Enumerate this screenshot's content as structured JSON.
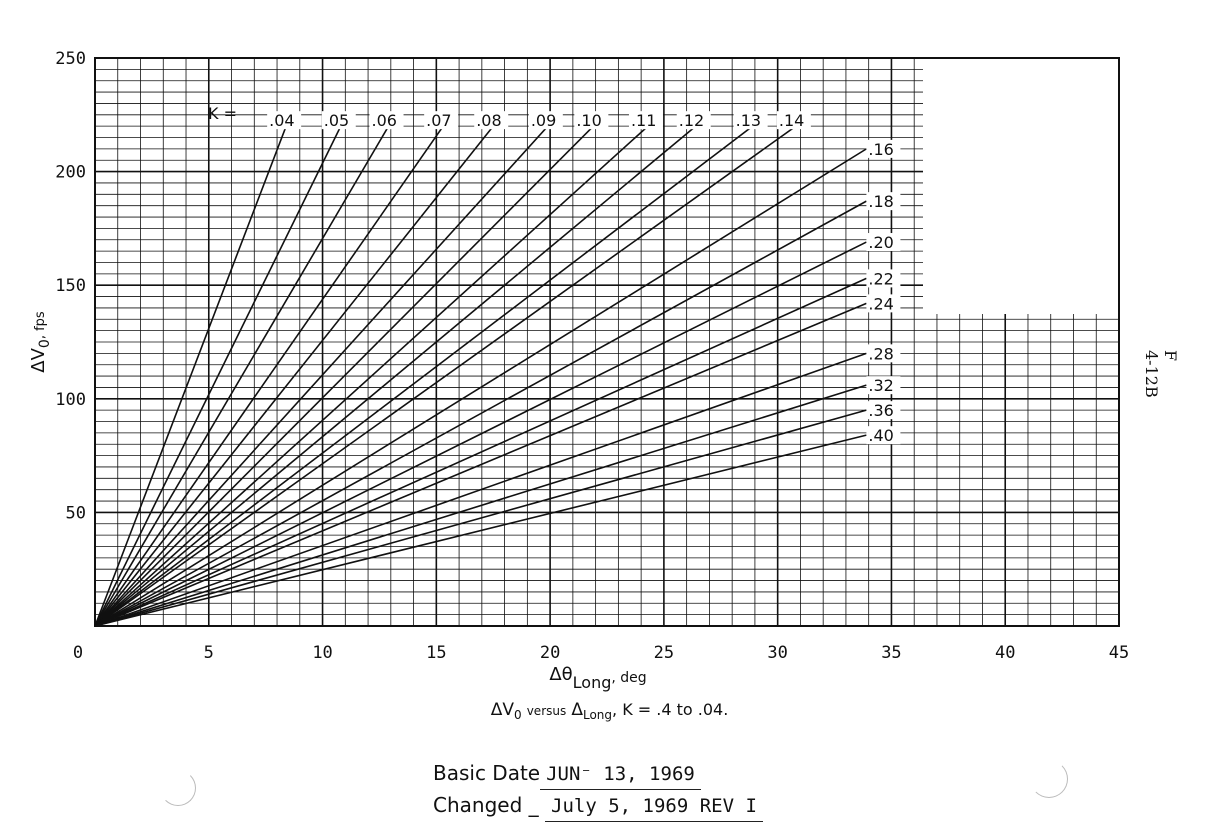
{
  "chart_data": {
    "type": "line",
    "ylabel_main": "ΔV",
    "ylabel_sub": "0",
    "ylabel_unit": ", fps",
    "xlabel_main": "Δθ",
    "xlabel_sub": "Long",
    "xlabel_unit": ", deg",
    "xlim": [
      0,
      45
    ],
    "ylim": [
      0,
      250
    ],
    "x_ticks": [
      "0",
      "5",
      "10",
      "15",
      "20",
      "25",
      "30",
      "35",
      "40",
      "45"
    ],
    "y_ticks": [
      "50",
      "100",
      "150",
      "200",
      "250"
    ],
    "grid": true,
    "k_prefix": "K =",
    "series": [
      {
        "name": ".04",
        "x": [
          0,
          8.4
        ],
        "y": [
          0,
          220
        ]
      },
      {
        "name": ".05",
        "x": [
          0,
          10.8
        ],
        "y": [
          0,
          220
        ]
      },
      {
        "name": ".06",
        "x": [
          0,
          12.9
        ],
        "y": [
          0,
          220
        ]
      },
      {
        "name": ".07",
        "x": [
          0,
          15.3
        ],
        "y": [
          0,
          220
        ]
      },
      {
        "name": ".08",
        "x": [
          0,
          17.5
        ],
        "y": [
          0,
          220
        ]
      },
      {
        "name": ".09",
        "x": [
          0,
          19.9
        ],
        "y": [
          0,
          220
        ]
      },
      {
        "name": ".10",
        "x": [
          0,
          21.9
        ],
        "y": [
          0,
          220
        ]
      },
      {
        "name": ".11",
        "x": [
          0,
          24.3
        ],
        "y": [
          0,
          220
        ]
      },
      {
        "name": ".12",
        "x": [
          0,
          26.4
        ],
        "y": [
          0,
          220
        ]
      },
      {
        "name": ".13",
        "x": [
          0,
          28.9
        ],
        "y": [
          0,
          220
        ]
      },
      {
        "name": ".14",
        "x": [
          0,
          30.8
        ],
        "y": [
          0,
          220
        ]
      },
      {
        "name": ".16",
        "x": [
          0,
          33.9
        ],
        "y": [
          0,
          210
        ]
      },
      {
        "name": ".18",
        "x": [
          0,
          33.9
        ],
        "y": [
          0,
          187
        ]
      },
      {
        "name": ".20",
        "x": [
          0,
          33.9
        ],
        "y": [
          0,
          169
        ]
      },
      {
        "name": ".22",
        "x": [
          0,
          33.9
        ],
        "y": [
          0,
          153
        ]
      },
      {
        "name": ".24",
        "x": [
          0,
          33.9
        ],
        "y": [
          0,
          142
        ]
      },
      {
        "name": ".28",
        "x": [
          0,
          33.9
        ],
        "y": [
          0,
          120
        ]
      },
      {
        "name": ".32",
        "x": [
          0,
          33.9
        ],
        "y": [
          0,
          106
        ]
      },
      {
        "name": ".36",
        "x": [
          0,
          33.9
        ],
        "y": [
          0,
          95
        ]
      },
      {
        "name": ".40",
        "x": [
          0,
          33.9
        ],
        "y": [
          0,
          84
        ]
      }
    ]
  },
  "caption": {
    "delta_v": "ΔV",
    "sub0": "0",
    "versus": "versus",
    "delta": "Δ",
    "long": "Long",
    "rest": ", K = .4 to .04."
  },
  "side_code": {
    "line1": "F",
    "line2": "4-12B"
  },
  "dates": {
    "basic_label": "Basic Date",
    "basic_value": "JUN⁻ 13, 1969",
    "changed_label": "Changed",
    "changed_value": "July 5, 1969 REV I"
  }
}
